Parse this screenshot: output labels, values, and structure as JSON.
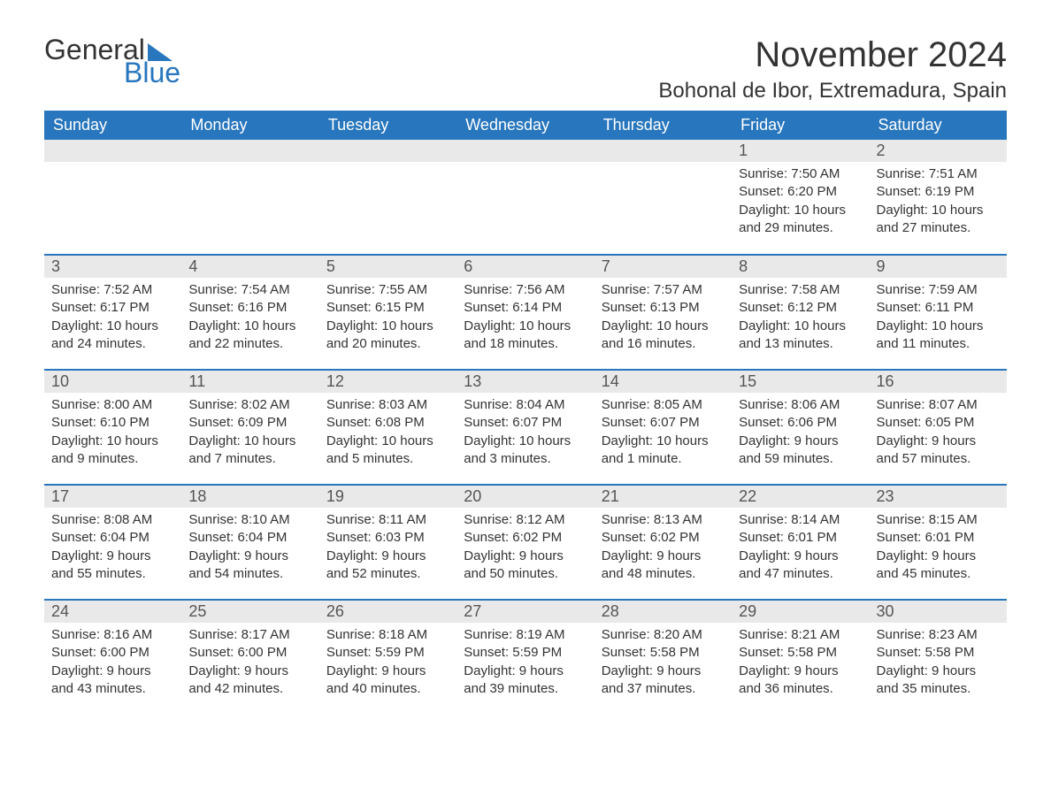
{
  "logo": {
    "text1": "General",
    "text2": "Blue"
  },
  "title": "November 2024",
  "location": "Bohonal de Ibor, Extremadura, Spain",
  "colors": {
    "header_bg": "#2876bd",
    "header_text": "#ffffff",
    "daynum_bg": "#e9e9e9",
    "daynum_text": "#555555",
    "body_text": "#333333",
    "week_border": "#2876bd",
    "page_bg": "#ffffff"
  },
  "fonts": {
    "month_title_pt": 40,
    "location_pt": 24,
    "header_pt": 18,
    "daynum_pt": 18,
    "body_pt": 15
  },
  "day_labels": [
    "Sunday",
    "Monday",
    "Tuesday",
    "Wednesday",
    "Thursday",
    "Friday",
    "Saturday"
  ],
  "labels": {
    "sunrise": "Sunrise:",
    "sunset": "Sunset:",
    "daylight": "Daylight:"
  },
  "weeks": [
    [
      null,
      null,
      null,
      null,
      null,
      {
        "n": "1",
        "sunrise": "7:50 AM",
        "sunset": "6:20 PM",
        "daylight": "10 hours and 29 minutes."
      },
      {
        "n": "2",
        "sunrise": "7:51 AM",
        "sunset": "6:19 PM",
        "daylight": "10 hours and 27 minutes."
      }
    ],
    [
      {
        "n": "3",
        "sunrise": "7:52 AM",
        "sunset": "6:17 PM",
        "daylight": "10 hours and 24 minutes."
      },
      {
        "n": "4",
        "sunrise": "7:54 AM",
        "sunset": "6:16 PM",
        "daylight": "10 hours and 22 minutes."
      },
      {
        "n": "5",
        "sunrise": "7:55 AM",
        "sunset": "6:15 PM",
        "daylight": "10 hours and 20 minutes."
      },
      {
        "n": "6",
        "sunrise": "7:56 AM",
        "sunset": "6:14 PM",
        "daylight": "10 hours and 18 minutes."
      },
      {
        "n": "7",
        "sunrise": "7:57 AM",
        "sunset": "6:13 PM",
        "daylight": "10 hours and 16 minutes."
      },
      {
        "n": "8",
        "sunrise": "7:58 AM",
        "sunset": "6:12 PM",
        "daylight": "10 hours and 13 minutes."
      },
      {
        "n": "9",
        "sunrise": "7:59 AM",
        "sunset": "6:11 PM",
        "daylight": "10 hours and 11 minutes."
      }
    ],
    [
      {
        "n": "10",
        "sunrise": "8:00 AM",
        "sunset": "6:10 PM",
        "daylight": "10 hours and 9 minutes."
      },
      {
        "n": "11",
        "sunrise": "8:02 AM",
        "sunset": "6:09 PM",
        "daylight": "10 hours and 7 minutes."
      },
      {
        "n": "12",
        "sunrise": "8:03 AM",
        "sunset": "6:08 PM",
        "daylight": "10 hours and 5 minutes."
      },
      {
        "n": "13",
        "sunrise": "8:04 AM",
        "sunset": "6:07 PM",
        "daylight": "10 hours and 3 minutes."
      },
      {
        "n": "14",
        "sunrise": "8:05 AM",
        "sunset": "6:07 PM",
        "daylight": "10 hours and 1 minute."
      },
      {
        "n": "15",
        "sunrise": "8:06 AM",
        "sunset": "6:06 PM",
        "daylight": "9 hours and 59 minutes."
      },
      {
        "n": "16",
        "sunrise": "8:07 AM",
        "sunset": "6:05 PM",
        "daylight": "9 hours and 57 minutes."
      }
    ],
    [
      {
        "n": "17",
        "sunrise": "8:08 AM",
        "sunset": "6:04 PM",
        "daylight": "9 hours and 55 minutes."
      },
      {
        "n": "18",
        "sunrise": "8:10 AM",
        "sunset": "6:04 PM",
        "daylight": "9 hours and 54 minutes."
      },
      {
        "n": "19",
        "sunrise": "8:11 AM",
        "sunset": "6:03 PM",
        "daylight": "9 hours and 52 minutes."
      },
      {
        "n": "20",
        "sunrise": "8:12 AM",
        "sunset": "6:02 PM",
        "daylight": "9 hours and 50 minutes."
      },
      {
        "n": "21",
        "sunrise": "8:13 AM",
        "sunset": "6:02 PM",
        "daylight": "9 hours and 48 minutes."
      },
      {
        "n": "22",
        "sunrise": "8:14 AM",
        "sunset": "6:01 PM",
        "daylight": "9 hours and 47 minutes."
      },
      {
        "n": "23",
        "sunrise": "8:15 AM",
        "sunset": "6:01 PM",
        "daylight": "9 hours and 45 minutes."
      }
    ],
    [
      {
        "n": "24",
        "sunrise": "8:16 AM",
        "sunset": "6:00 PM",
        "daylight": "9 hours and 43 minutes."
      },
      {
        "n": "25",
        "sunrise": "8:17 AM",
        "sunset": "6:00 PM",
        "daylight": "9 hours and 42 minutes."
      },
      {
        "n": "26",
        "sunrise": "8:18 AM",
        "sunset": "5:59 PM",
        "daylight": "9 hours and 40 minutes."
      },
      {
        "n": "27",
        "sunrise": "8:19 AM",
        "sunset": "5:59 PM",
        "daylight": "9 hours and 39 minutes."
      },
      {
        "n": "28",
        "sunrise": "8:20 AM",
        "sunset": "5:58 PM",
        "daylight": "9 hours and 37 minutes."
      },
      {
        "n": "29",
        "sunrise": "8:21 AM",
        "sunset": "5:58 PM",
        "daylight": "9 hours and 36 minutes."
      },
      {
        "n": "30",
        "sunrise": "8:23 AM",
        "sunset": "5:58 PM",
        "daylight": "9 hours and 35 minutes."
      }
    ]
  ]
}
